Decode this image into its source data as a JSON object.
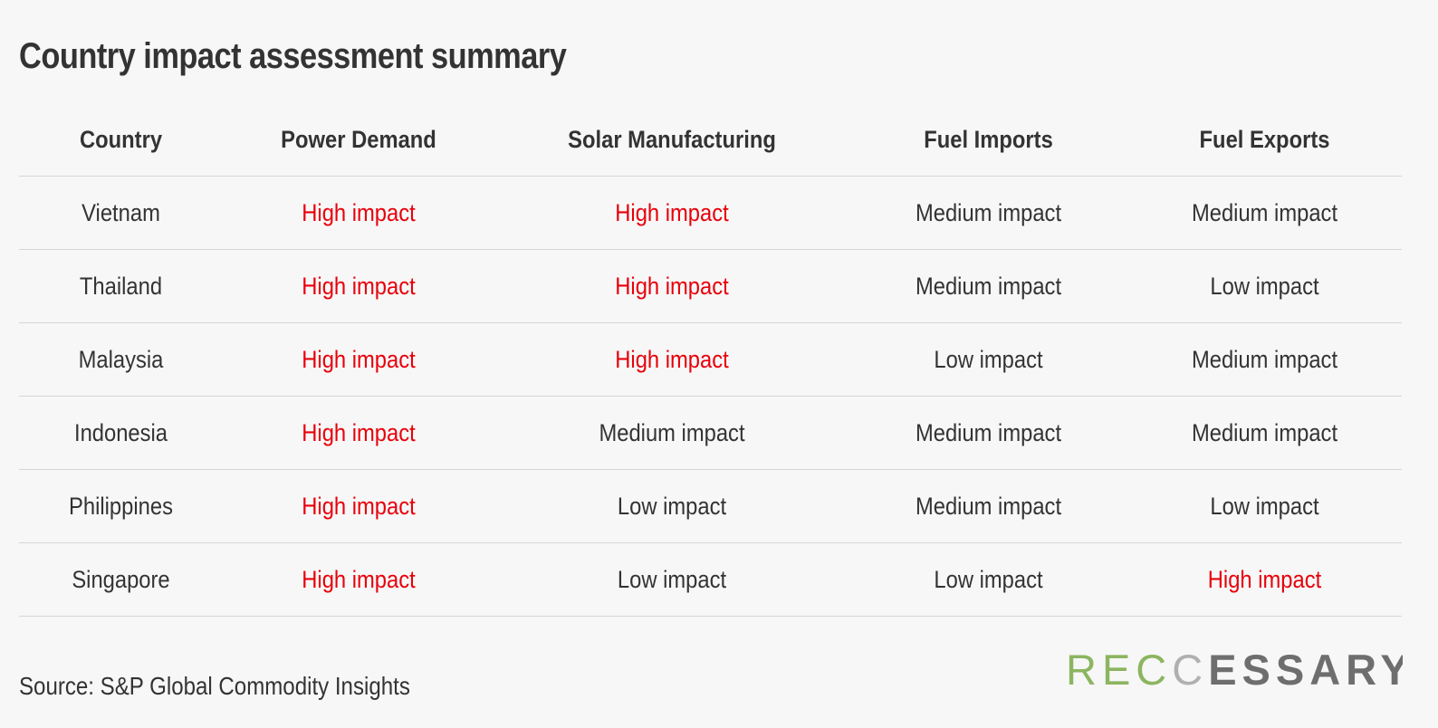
{
  "title": "Country impact assessment summary",
  "source": "Source: S&P Global Commodity Insights",
  "logo_text": "RECCESSARY",
  "colors": {
    "high_impact": "#e8000b",
    "text": "#333333",
    "background": "#f7f7f7",
    "logo_green": "#8cb560",
    "logo_grey": "#6e6e6e"
  },
  "chart_data": {
    "type": "table",
    "title": "Country impact assessment summary",
    "columns": [
      "Country",
      "Power Demand",
      "Solar Manufacturing",
      "Fuel Imports",
      "Fuel Exports"
    ],
    "rows": [
      [
        "Vietnam",
        "High impact",
        "High impact",
        "Medium impact",
        "Medium impact"
      ],
      [
        "Thailand",
        "High impact",
        "High impact",
        "Medium impact",
        "Low impact"
      ],
      [
        "Malaysia",
        "High impact",
        "High impact",
        "Low impact",
        "Medium impact"
      ],
      [
        "Indonesia",
        "High impact",
        "Medium impact",
        "Medium impact",
        "Medium impact"
      ],
      [
        "Philippines",
        "High impact",
        "Low impact",
        "Medium impact",
        "Low impact"
      ],
      [
        "Singapore",
        "High impact",
        "Low impact",
        "Low impact",
        "High impact"
      ]
    ]
  }
}
